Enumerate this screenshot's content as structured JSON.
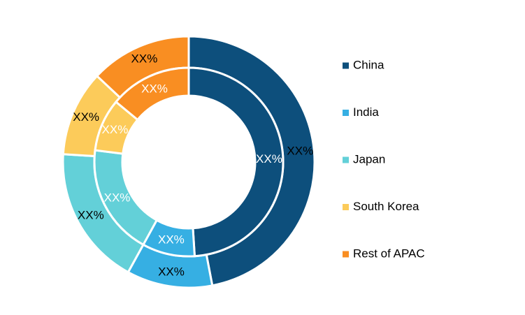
{
  "chart_data": {
    "type": "nested-donut",
    "categories": [
      "China",
      "India",
      "Japan",
      "South Korea",
      "Rest of APAC"
    ],
    "colors": [
      "#0d4f7c",
      "#36afe3",
      "#63d0d8",
      "#fccb5a",
      "#f98e22"
    ],
    "series": [
      {
        "values": [
          47,
          11,
          18,
          11,
          13
        ],
        "value_labels": [
          "XX%",
          "XX%",
          "XX%",
          "XX%",
          "XX%"
        ],
        "label_color": "#000000"
      },
      {
        "values": [
          49,
          9,
          19,
          9,
          14
        ],
        "value_labels": [
          "XX%",
          "XX%",
          "XX%",
          "XX%",
          "XX%"
        ],
        "label_color": "#ffffff"
      }
    ],
    "legend": "right"
  }
}
